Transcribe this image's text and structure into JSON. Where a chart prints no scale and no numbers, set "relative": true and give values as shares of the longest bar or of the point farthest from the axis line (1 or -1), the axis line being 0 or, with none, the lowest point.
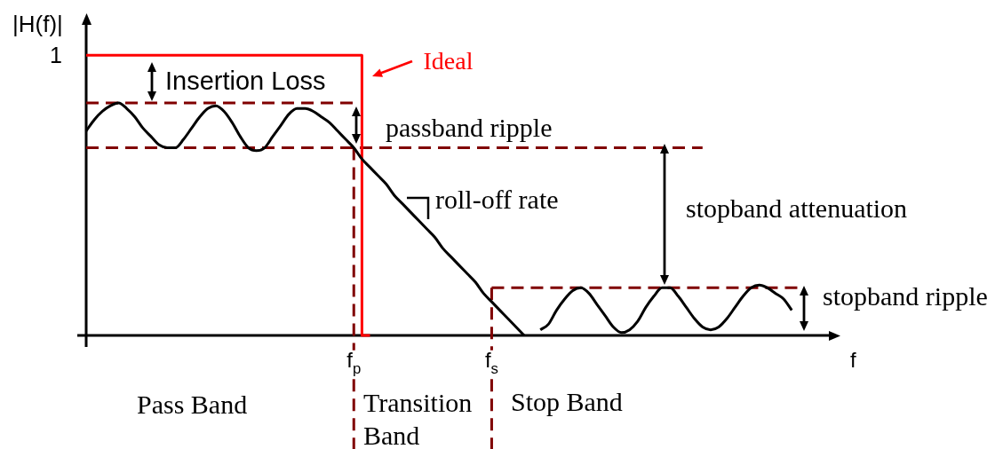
{
  "chart_data": {
    "type": "line",
    "relative": true,
    "tick_labels": "x",
    "marker": "none",
    "xlabel": "f",
    "ylabel": "|H(f)|",
    "categories": [
      null,
      null,
      null,
      null,
      null,
      null,
      null,
      null,
      null,
      null,
      null,
      null,
      null,
      null,
      null,
      null,
      null,
      null,
      null,
      null,
      null,
      null,
      null,
      null,
      null,
      null,
      null,
      null,
      null,
      null,
      null,
      null,
      null,
      "f$_{p}$",
      null,
      null,
      null,
      null,
      null,
      null,
      null,
      null,
      null,
      null,
      null,
      null,
      null,
      null,
      null,
      null,
      "f$_{s}$",
      null,
      null,
      null,
      null,
      null,
      null,
      null,
      null,
      null,
      null,
      null,
      null,
      null,
      null,
      null,
      null,
      null,
      null,
      null,
      null,
      null,
      null,
      null,
      null,
      null,
      null,
      null,
      null,
      null,
      null,
      null,
      null,
      null,
      null,
      null,
      null,
      null,
      null,
      null,
      null,
      null,
      null,
      null
    ],
    "series": [
      {
        "color": "#000000",
        "values": [
          0.73,
          0.77,
          0.8,
          0.82,
          0.83,
          0.81,
          0.78,
          0.74,
          0.71,
          0.68,
          0.67,
          0.67,
          0.7,
          0.74,
          0.78,
          0.81,
          0.82,
          0.8,
          0.76,
          0.71,
          0.67,
          0.66,
          0.67,
          0.71,
          0.75,
          0.79,
          0.81,
          0.81,
          0.8,
          0.78,
          0.76,
          0.73,
          0.7,
          0.67,
          0.63,
          0.6,
          0.57,
          0.54,
          0.5,
          0.47,
          0.44,
          0.41,
          0.38,
          0.35,
          0.31,
          0.28,
          0.25,
          0.22,
          0.19,
          0.15,
          0.12,
          0.09,
          0.06,
          0.03,
          0,
          null,
          0.02,
          0.04,
          0.09,
          0.13,
          0.16,
          0.17,
          0.15,
          0.11,
          0.07,
          0.03,
          0.01,
          0.02,
          0.05,
          0.1,
          0.14,
          0.17,
          0.17,
          0.14,
          0.1,
          0.06,
          0.03,
          0.02,
          0.03,
          0.06,
          0.1,
          0.14,
          0.17,
          0.18,
          0.17,
          0.15,
          0.13,
          0.09,
          null,
          null,
          null,
          null,
          null,
          null
        ]
      },
      {
        "type": "step",
        "name": "Ideal",
        "color": "#ff0000",
        "values": [
          1,
          1,
          1,
          1,
          1,
          1,
          1,
          1,
          1,
          1,
          1,
          1,
          1,
          1,
          1,
          1,
          1,
          1,
          1,
          1,
          1,
          1,
          1,
          1,
          1,
          1,
          1,
          1,
          1,
          1,
          1,
          1,
          1,
          1,
          1,
          0,
          null,
          null,
          null,
          null,
          null,
          null,
          null,
          null,
          null,
          null,
          null,
          null,
          null,
          null,
          null,
          null,
          null,
          null,
          null,
          null,
          null,
          null,
          null,
          null,
          null,
          null,
          null,
          null,
          null,
          null,
          null,
          null,
          null,
          null,
          null,
          null,
          null,
          null,
          null,
          null,
          null,
          null,
          null,
          null,
          null,
          null,
          null,
          null,
          null,
          null,
          null,
          null,
          null,
          null,
          null,
          null,
          null,
          null
        ]
      },
      {
        "color": "#800000",
        "line_style": "dashed",
        "values": [
          0.83,
          0.83,
          0.83,
          0.83,
          0.83,
          0.83,
          0.83,
          0.83,
          0.83,
          0.83,
          0.83,
          0.83,
          0.83,
          0.83,
          0.83,
          0.83,
          0.83,
          0.83,
          0.83,
          0.83,
          0.83,
          0.83,
          0.83,
          0.83,
          0.83,
          0.83,
          0.83,
          0.83,
          0.83,
          0.83,
          0.83,
          0.83,
          0.83,
          0.83,
          null,
          null,
          null,
          null,
          null,
          null,
          null,
          null,
          null,
          null,
          null,
          null,
          null,
          null,
          null,
          null,
          null,
          null,
          null,
          null,
          null,
          null,
          null,
          null,
          null,
          null,
          null,
          null,
          null,
          null,
          null,
          null,
          null,
          null,
          null,
          null,
          null,
          null,
          null,
          null,
          null,
          null,
          null,
          null,
          null,
          null,
          null,
          null,
          null,
          null,
          null,
          null,
          null,
          null,
          null,
          null,
          null,
          null,
          null,
          null
        ]
      },
      {
        "color": "#800000",
        "line_style": "dashed",
        "values": [
          0.67,
          0.67,
          0.67,
          0.67,
          0.67,
          0.67,
          0.67,
          0.67,
          0.67,
          0.67,
          0.67,
          0.67,
          0.67,
          0.67,
          0.67,
          0.67,
          0.67,
          0.67,
          0.67,
          0.67,
          0.67,
          0.67,
          0.67,
          0.67,
          0.67,
          0.67,
          0.67,
          0.67,
          0.67,
          0.67,
          0.67,
          0.67,
          0.67,
          0.67,
          0.67,
          0.67,
          0.67,
          0.67,
          0.67,
          0.67,
          0.67,
          0.67,
          0.67,
          0.67,
          0.67,
          0.67,
          0.67,
          0.67,
          0.67,
          0.67,
          0.67,
          0.67,
          0.67,
          0.67,
          0.67,
          0.67,
          0.67,
          0.67,
          0.67,
          0.67,
          0.67,
          0.67,
          0.67,
          0.67,
          0.67,
          0.67,
          0.67,
          0.67,
          0.67,
          0.67,
          0.67,
          0.67,
          0.67,
          0.67,
          0.67,
          0.67,
          0.67,
          null,
          null,
          null,
          null,
          null,
          null,
          null,
          null,
          null,
          null,
          null,
          null,
          null,
          null,
          null,
          null,
          null
        ]
      },
      {
        "color": "#800000",
        "line_style": "dashed",
        "values": [
          null,
          null,
          null,
          null,
          null,
          null,
          null,
          null,
          null,
          null,
          null,
          null,
          null,
          null,
          null,
          null,
          null,
          null,
          null,
          null,
          null,
          null,
          null,
          null,
          null,
          null,
          null,
          null,
          null,
          null,
          null,
          null,
          null,
          null,
          null,
          null,
          null,
          null,
          null,
          null,
          null,
          null,
          null,
          null,
          null,
          null,
          null,
          null,
          null,
          null,
          0.17,
          0.17,
          0.17,
          0.17,
          0.17,
          0.17,
          0.17,
          0.17,
          0.17,
          0.17,
          0.17,
          0.17,
          0.17,
          0.17,
          0.17,
          0.17,
          0.17,
          0.17,
          0.17,
          0.17,
          0.17,
          0.17,
          0.17,
          0.17,
          0.17,
          0.17,
          0.17,
          0.17,
          0.17,
          0.17,
          0.17,
          0.17,
          0.17,
          0.17,
          0.17,
          0.17,
          0.17,
          0.17,
          0.17,
          null,
          null,
          null,
          null,
          null
        ]
      }
    ],
    "ref_lines": [
      {
        "axis": "x",
        "value": "f$_{p}$",
        "color": "#800000",
        "line_style": "dashed"
      },
      {
        "axis": "x",
        "value": "f$_{s}$",
        "color": "#800000",
        "line_style": "dashed"
      }
    ],
    "annotations": [
      "Insertion Loss",
      "passband ripple",
      "roll-off rate",
      "stopband attenuation",
      "stopband ripple",
      "Pass Band",
      "Transition Band",
      "Stop Band",
      "1"
    ]
  }
}
